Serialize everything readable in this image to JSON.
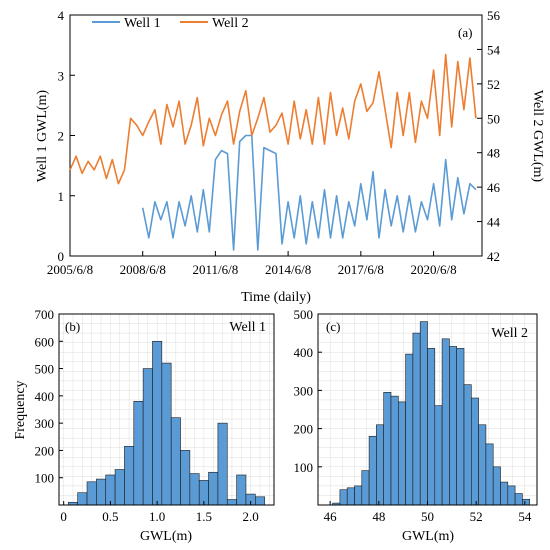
{
  "chart_data": [
    {
      "type": "line",
      "panel_label": "(a)",
      "xlabel": "Time (daily)",
      "ylabel_left": "Well 1 GWL(m)",
      "ylabel_right": "Well 2 GWL(m)",
      "x_range": [
        "2005/6/8",
        "2022/6/8"
      ],
      "x_ticks": [
        "2005/6/8",
        "2008/6/8",
        "2011/6/8",
        "2014/6/8",
        "2017/6/8",
        "2020/6/8"
      ],
      "y_left_range": [
        0,
        4
      ],
      "y_left_ticks": [
        0,
        1,
        2,
        3,
        4
      ],
      "y_right_range": [
        42,
        56
      ],
      "y_right_ticks": [
        42,
        44,
        46,
        48,
        50,
        52,
        54,
        56
      ],
      "legend_position": "top-left",
      "grid": false,
      "series": [
        {
          "name": "Well 1",
          "axis": "left",
          "color": "#5b9bd5",
          "t": [
            "2008/6/8",
            "2008/9/8",
            "2008/12/8",
            "2009/3/8",
            "2009/6/8",
            "2009/9/8",
            "2009/12/8",
            "2010/3/8",
            "2010/6/8",
            "2010/9/8",
            "2010/12/8",
            "2011/3/8",
            "2011/6/8",
            "2011/9/8",
            "2011/12/8",
            "2012/3/8",
            "2012/6/8",
            "2012/9/8",
            "2012/12/8",
            "2013/3/8",
            "2013/6/8",
            "2013/9/8",
            "2013/12/8",
            "2014/3/8",
            "2014/6/8",
            "2014/9/8",
            "2014/12/8",
            "2015/3/8",
            "2015/6/8",
            "2015/9/8",
            "2015/12/8",
            "2016/3/8",
            "2016/6/8",
            "2016/9/8",
            "2016/12/8",
            "2017/3/8",
            "2017/6/8",
            "2017/9/8",
            "2017/12/8",
            "2018/3/8",
            "2018/6/8",
            "2018/9/8",
            "2018/12/8",
            "2019/3/8",
            "2019/6/8",
            "2019/9/8",
            "2019/12/8",
            "2020/3/8",
            "2020/6/8",
            "2020/9/8",
            "2020/12/8",
            "2021/3/8",
            "2021/6/8",
            "2021/9/8",
            "2021/12/8",
            "2022/3/8"
          ],
          "values": [
            0.8,
            0.3,
            0.9,
            0.6,
            0.9,
            0.3,
            0.9,
            0.5,
            1.0,
            0.4,
            1.1,
            0.4,
            1.6,
            1.75,
            1.7,
            0.1,
            1.9,
            2.0,
            2.0,
            0.1,
            1.8,
            1.75,
            1.7,
            0.2,
            0.9,
            0.3,
            1.0,
            0.2,
            0.9,
            0.3,
            1.1,
            0.3,
            1.0,
            0.3,
            0.9,
            0.5,
            1.2,
            0.6,
            1.4,
            0.3,
            1.1,
            0.5,
            1.0,
            0.4,
            1.0,
            0.4,
            0.9,
            0.6,
            1.2,
            0.5,
            1.6,
            0.6,
            1.3,
            0.7,
            1.2,
            1.1
          ]
        },
        {
          "name": "Well 2",
          "axis": "right",
          "color": "#ed7d31",
          "t": [
            "2005/6/8",
            "2005/9/8",
            "2005/12/8",
            "2006/3/8",
            "2006/6/8",
            "2006/9/8",
            "2006/12/8",
            "2007/3/8",
            "2007/6/8",
            "2007/9/8",
            "2007/12/8",
            "2008/3/8",
            "2008/6/8",
            "2008/9/8",
            "2008/12/8",
            "2009/3/8",
            "2009/6/8",
            "2009/9/8",
            "2009/12/8",
            "2010/3/8",
            "2010/6/8",
            "2010/9/8",
            "2010/12/8",
            "2011/3/8",
            "2011/6/8",
            "2011/9/8",
            "2011/12/8",
            "2012/3/8",
            "2012/6/8",
            "2012/9/8",
            "2012/12/8",
            "2013/3/8",
            "2013/6/8",
            "2013/9/8",
            "2013/12/8",
            "2014/3/8",
            "2014/6/8",
            "2014/9/8",
            "2014/12/8",
            "2015/3/8",
            "2015/6/8",
            "2015/9/8",
            "2015/12/8",
            "2016/3/8",
            "2016/6/8",
            "2016/9/8",
            "2016/12/8",
            "2017/3/8",
            "2017/6/8",
            "2017/9/8",
            "2017/12/8",
            "2018/3/8",
            "2018/6/8",
            "2018/9/8",
            "2018/12/8",
            "2019/3/8",
            "2019/6/8",
            "2019/9/8",
            "2019/12/8",
            "2020/3/8",
            "2020/6/8",
            "2020/9/8",
            "2020/12/8",
            "2021/3/8",
            "2021/6/8",
            "2021/9/8",
            "2021/12/8",
            "2022/3/8"
          ],
          "values": [
            47.0,
            47.8,
            46.8,
            47.5,
            47.0,
            47.8,
            46.5,
            47.6,
            46.2,
            47.0,
            50.0,
            49.6,
            49.0,
            49.8,
            50.5,
            48.5,
            50.8,
            49.5,
            51.0,
            48.5,
            49.6,
            51.2,
            48.4,
            50.0,
            49.0,
            50.2,
            51.0,
            48.5,
            50.4,
            51.6,
            49.0,
            50.0,
            51.2,
            49.2,
            49.6,
            50.3,
            48.5,
            51.0,
            48.8,
            50.5,
            48.5,
            51.2,
            48.5,
            51.5,
            49.0,
            50.6,
            48.8,
            51.0,
            52.0,
            50.4,
            50.9,
            52.7,
            50.5,
            48.3,
            51.5,
            49.0,
            51.5,
            48.6,
            51.0,
            50.0,
            52.8,
            49.0,
            53.7,
            49.5,
            53.3,
            50.5,
            53.5,
            50.0
          ]
        }
      ]
    },
    {
      "type": "bar",
      "panel_label": "(b)",
      "series_label": "Well 1",
      "xlabel": "GWL(m)",
      "ylabel": "Frequency",
      "xlim": [
        -0.05,
        2.25
      ],
      "ylim": [
        0,
        700
      ],
      "x_ticks": [
        0,
        0.5,
        1.0,
        1.5,
        2.0
      ],
      "x_tick_labels": [
        "0",
        "0.5",
        "1.0",
        "1.5",
        "2.0"
      ],
      "y_ticks": [
        100,
        200,
        300,
        400,
        500,
        600,
        700
      ],
      "grid": true,
      "color": "#5b9bd5",
      "bin_width": 0.1,
      "bin_left_edges": [
        0.05,
        0.15,
        0.25,
        0.35,
        0.45,
        0.55,
        0.65,
        0.75,
        0.85,
        0.95,
        1.05,
        1.15,
        1.25,
        1.35,
        1.45,
        1.55,
        1.65,
        1.75,
        1.85,
        1.95,
        2.05
      ],
      "values": [
        10,
        45,
        85,
        95,
        110,
        130,
        215,
        380,
        500,
        600,
        520,
        320,
        200,
        115,
        90,
        120,
        300,
        20,
        110,
        40,
        30
      ]
    },
    {
      "type": "bar",
      "panel_label": "(c)",
      "series_label": "Well 2",
      "xlabel": "GWL(m)",
      "ylabel": "",
      "xlim": [
        45.5,
        54.5
      ],
      "ylim": [
        0,
        500
      ],
      "x_ticks": [
        46,
        48,
        50,
        52,
        54
      ],
      "x_tick_labels": [
        "46",
        "48",
        "50",
        "52",
        "54"
      ],
      "y_ticks": [
        100,
        200,
        300,
        400,
        500
      ],
      "grid": true,
      "color": "#5b9bd5",
      "bin_width": 0.3,
      "bin_left_edges": [
        46.1,
        46.4,
        46.7,
        47.0,
        47.3,
        47.6,
        47.9,
        48.2,
        48.5,
        48.8,
        49.1,
        49.4,
        49.7,
        50.0,
        50.3,
        50.6,
        50.9,
        51.2,
        51.5,
        51.8,
        52.1,
        52.4,
        52.7,
        53.0,
        53.3,
        53.6,
        53.9
      ],
      "values": [
        5,
        40,
        45,
        50,
        90,
        180,
        210,
        295,
        285,
        270,
        395,
        450,
        480,
        410,
        260,
        435,
        415,
        410,
        315,
        280,
        210,
        160,
        100,
        60,
        50,
        30,
        15
      ]
    }
  ]
}
